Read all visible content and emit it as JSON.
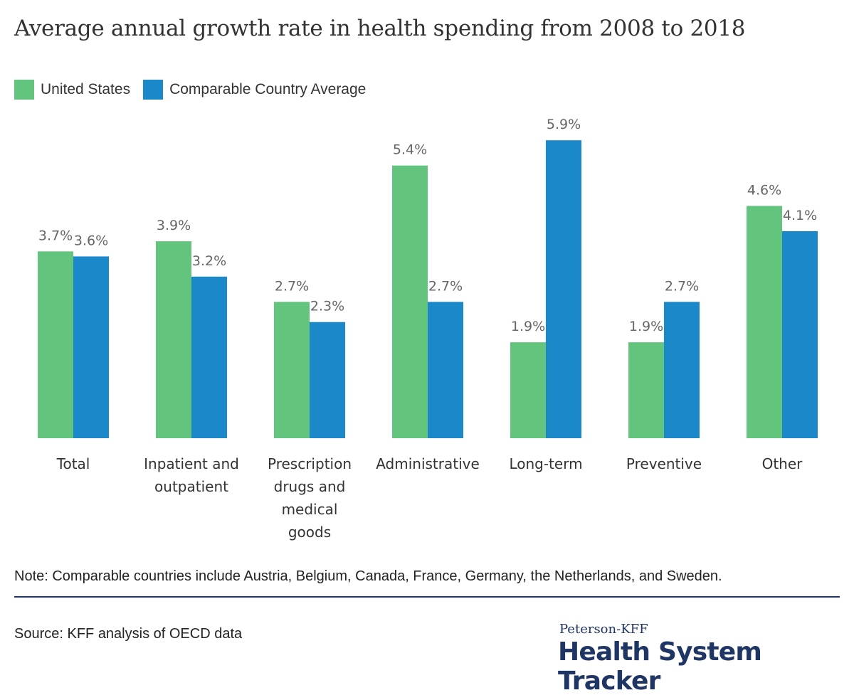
{
  "colors": {
    "us": "#63c57d",
    "comparable": "#1a88c9",
    "brand": "#1f3564"
  },
  "legend": {
    "us": "United States",
    "comparable": "Comparable Country Average"
  },
  "footer": {
    "note": "Note: Comparable countries include Austria, Belgium, Canada, France, Germany, the Netherlands, and Sweden.",
    "source": "Source: KFF analysis of OECD data",
    "brand_top": "Peterson-KFF",
    "brand_main": "Health System Tracker"
  },
  "chart_data": {
    "type": "bar",
    "title": "Average annual growth rate in health spending from 2008 to 2018",
    "categories": [
      [
        "Total"
      ],
      [
        "Inpatient and",
        "outpatient"
      ],
      [
        "Prescription",
        "drugs and",
        "medical",
        "goods"
      ],
      [
        "Administrative"
      ],
      [
        "Long-term"
      ],
      [
        "Preventive"
      ],
      [
        "Other"
      ]
    ],
    "series": [
      {
        "name": "United States",
        "values": [
          3.7,
          3.9,
          2.7,
          5.4,
          1.9,
          1.9,
          4.6
        ],
        "labels": [
          "3.7%",
          "3.9%",
          "2.7%",
          "5.4%",
          "1.9%",
          "1.9%",
          "4.6%"
        ]
      },
      {
        "name": "Comparable Country Average",
        "values": [
          3.6,
          3.2,
          2.3,
          2.7,
          5.9,
          2.7,
          4.1
        ],
        "labels": [
          "3.6%",
          "3.2%",
          "2.3%",
          "2.7%",
          "5.9%",
          "2.7%",
          "4.1%"
        ]
      }
    ],
    "xlabel": "",
    "ylabel": "",
    "ylim": [
      0,
      7.1
    ],
    "grid": false,
    "legend_position": "top-left"
  }
}
